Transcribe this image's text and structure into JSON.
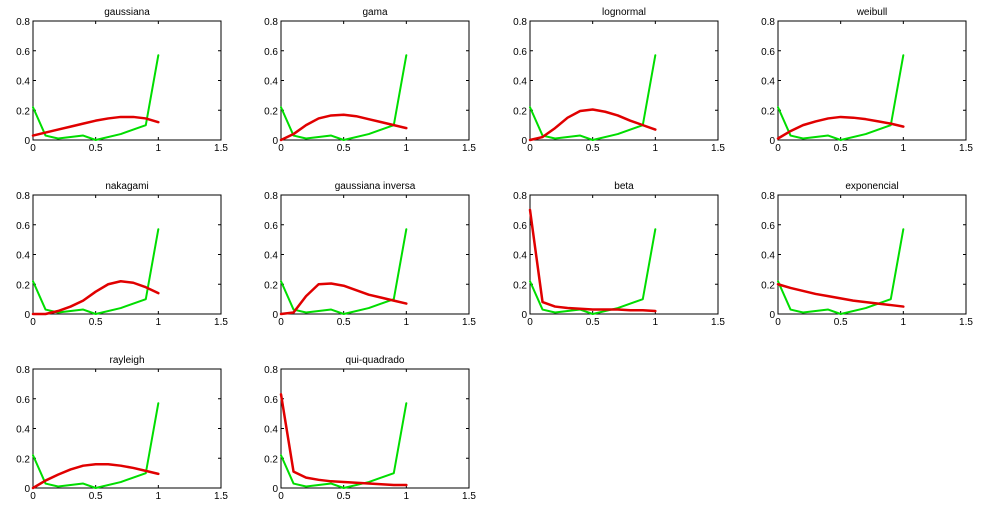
{
  "chart_data": [
    {
      "type": "line",
      "title": "gaussiana",
      "xlim": [
        0,
        1.5
      ],
      "ylim": [
        0,
        0.8
      ],
      "xticks": [
        "0",
        "0.5",
        "1",
        "1.5"
      ],
      "yticks": [
        "0",
        "0.2",
        "0.4",
        "0.6",
        "0.8"
      ],
      "series": [
        {
          "color": "#00dd00",
          "x": [
            0,
            0.1,
            0.2,
            0.4,
            0.5,
            0.7,
            0.9,
            1.0
          ],
          "y": [
            0.22,
            0.03,
            0.01,
            0.03,
            0.0,
            0.04,
            0.1,
            0.57
          ]
        },
        {
          "color": "#e00000",
          "x": [
            0,
            0.1,
            0.2,
            0.3,
            0.4,
            0.5,
            0.6,
            0.7,
            0.8,
            0.9,
            1.0
          ],
          "y": [
            0.03,
            0.05,
            0.07,
            0.09,
            0.11,
            0.13,
            0.145,
            0.155,
            0.155,
            0.145,
            0.12
          ]
        }
      ]
    },
    {
      "type": "line",
      "title": "gama",
      "xlim": [
        0,
        1.5
      ],
      "ylim": [
        0,
        0.8
      ],
      "xticks": [
        "0",
        "0.5",
        "1",
        "1.5"
      ],
      "yticks": [
        "0",
        "0.2",
        "0.4",
        "0.6",
        "0.8"
      ],
      "series": [
        {
          "color": "#00dd00",
          "x": [
            0,
            0.1,
            0.2,
            0.4,
            0.5,
            0.7,
            0.9,
            1.0
          ],
          "y": [
            0.22,
            0.03,
            0.01,
            0.03,
            0.0,
            0.04,
            0.1,
            0.57
          ]
        },
        {
          "color": "#e00000",
          "x": [
            0,
            0.1,
            0.2,
            0.3,
            0.4,
            0.5,
            0.6,
            0.7,
            0.8,
            0.9,
            1.0
          ],
          "y": [
            0.0,
            0.04,
            0.1,
            0.145,
            0.165,
            0.17,
            0.16,
            0.14,
            0.12,
            0.1,
            0.08
          ]
        }
      ]
    },
    {
      "type": "line",
      "title": "lognormal",
      "xlim": [
        0,
        1.5
      ],
      "ylim": [
        0,
        0.8
      ],
      "xticks": [
        "0",
        "0.5",
        "1",
        "1.5"
      ],
      "yticks": [
        "0",
        "0.2",
        "0.4",
        "0.6",
        "0.8"
      ],
      "series": [
        {
          "color": "#00dd00",
          "x": [
            0,
            0.1,
            0.2,
            0.4,
            0.5,
            0.7,
            0.9,
            1.0
          ],
          "y": [
            0.22,
            0.03,
            0.01,
            0.03,
            0.0,
            0.04,
            0.1,
            0.57
          ]
        },
        {
          "color": "#e00000",
          "x": [
            0,
            0.1,
            0.2,
            0.3,
            0.4,
            0.5,
            0.6,
            0.7,
            0.8,
            0.9,
            1.0
          ],
          "y": [
            0.0,
            0.02,
            0.08,
            0.15,
            0.195,
            0.205,
            0.19,
            0.165,
            0.13,
            0.1,
            0.07
          ]
        }
      ]
    },
    {
      "type": "line",
      "title": "weibull",
      "xlim": [
        0,
        1.5
      ],
      "ylim": [
        0,
        0.8
      ],
      "xticks": [
        "0",
        "0.5",
        "1",
        "1.5"
      ],
      "yticks": [
        "0",
        "0.2",
        "0.4",
        "0.6",
        "0.8"
      ],
      "series": [
        {
          "color": "#00dd00",
          "x": [
            0,
            0.1,
            0.2,
            0.4,
            0.5,
            0.7,
            0.9,
            1.0
          ],
          "y": [
            0.22,
            0.03,
            0.01,
            0.03,
            0.0,
            0.04,
            0.1,
            0.57
          ]
        },
        {
          "color": "#e00000",
          "x": [
            0,
            0.1,
            0.2,
            0.3,
            0.4,
            0.5,
            0.6,
            0.7,
            0.8,
            0.9,
            1.0
          ],
          "y": [
            0.01,
            0.06,
            0.1,
            0.125,
            0.145,
            0.155,
            0.15,
            0.14,
            0.125,
            0.11,
            0.09
          ]
        }
      ]
    },
    {
      "type": "line",
      "title": "nakagami",
      "xlim": [
        0,
        1.5
      ],
      "ylim": [
        0,
        0.8
      ],
      "xticks": [
        "0",
        "0.5",
        "1",
        "1.5"
      ],
      "yticks": [
        "0",
        "0.2",
        "0.4",
        "0.6",
        "0.8"
      ],
      "series": [
        {
          "color": "#00dd00",
          "x": [
            0,
            0.1,
            0.2,
            0.4,
            0.5,
            0.7,
            0.9,
            1.0
          ],
          "y": [
            0.22,
            0.03,
            0.01,
            0.03,
            0.0,
            0.04,
            0.1,
            0.57
          ]
        },
        {
          "color": "#e00000",
          "x": [
            0,
            0.1,
            0.2,
            0.3,
            0.4,
            0.5,
            0.6,
            0.7,
            0.8,
            0.9,
            1.0
          ],
          "y": [
            0.0,
            0.0,
            0.02,
            0.05,
            0.09,
            0.15,
            0.2,
            0.22,
            0.21,
            0.18,
            0.14
          ]
        }
      ]
    },
    {
      "type": "line",
      "title": "gaussiana inversa",
      "xlim": [
        0,
        1.5
      ],
      "ylim": [
        0,
        0.8
      ],
      "xticks": [
        "0",
        "0.5",
        "1",
        "1.5"
      ],
      "yticks": [
        "0",
        "0.2",
        "0.4",
        "0.6",
        "0.8"
      ],
      "series": [
        {
          "color": "#00dd00",
          "x": [
            0,
            0.1,
            0.2,
            0.4,
            0.5,
            0.7,
            0.9,
            1.0
          ],
          "y": [
            0.22,
            0.03,
            0.01,
            0.03,
            0.0,
            0.04,
            0.1,
            0.57
          ]
        },
        {
          "color": "#e00000",
          "x": [
            0,
            0.1,
            0.2,
            0.3,
            0.4,
            0.5,
            0.6,
            0.7,
            0.8,
            0.9,
            1.0
          ],
          "y": [
            0.0,
            0.01,
            0.12,
            0.2,
            0.205,
            0.19,
            0.16,
            0.13,
            0.11,
            0.09,
            0.07
          ]
        }
      ]
    },
    {
      "type": "line",
      "title": "beta",
      "xlim": [
        0,
        1.5
      ],
      "ylim": [
        0,
        0.8
      ],
      "xticks": [
        "0",
        "0.5",
        "1",
        "1.5"
      ],
      "yticks": [
        "0",
        "0.2",
        "0.4",
        "0.6",
        "0.8"
      ],
      "series": [
        {
          "color": "#00dd00",
          "x": [
            0,
            0.1,
            0.2,
            0.4,
            0.5,
            0.7,
            0.9,
            1.0
          ],
          "y": [
            0.22,
            0.03,
            0.01,
            0.03,
            0.0,
            0.04,
            0.1,
            0.57
          ]
        },
        {
          "color": "#e00000",
          "x": [
            0,
            0.1,
            0.2,
            0.3,
            0.4,
            0.5,
            0.6,
            0.7,
            0.8,
            0.9,
            1.0
          ],
          "y": [
            0.7,
            0.08,
            0.05,
            0.04,
            0.035,
            0.03,
            0.03,
            0.03,
            0.025,
            0.025,
            0.02
          ]
        }
      ]
    },
    {
      "type": "line",
      "title": "exponencial",
      "xlim": [
        0,
        1.5
      ],
      "ylim": [
        0,
        0.8
      ],
      "xticks": [
        "0",
        "0.5",
        "1",
        "1.5"
      ],
      "yticks": [
        "0",
        "0.2",
        "0.4",
        "0.6",
        "0.8"
      ],
      "series": [
        {
          "color": "#00dd00",
          "x": [
            0,
            0.1,
            0.2,
            0.4,
            0.5,
            0.7,
            0.9,
            1.0
          ],
          "y": [
            0.22,
            0.03,
            0.01,
            0.03,
            0.0,
            0.04,
            0.1,
            0.57
          ]
        },
        {
          "color": "#e00000",
          "x": [
            0,
            0.1,
            0.2,
            0.3,
            0.4,
            0.5,
            0.6,
            0.7,
            0.8,
            0.9,
            1.0
          ],
          "y": [
            0.2,
            0.175,
            0.155,
            0.135,
            0.12,
            0.105,
            0.09,
            0.08,
            0.07,
            0.06,
            0.05
          ]
        }
      ]
    },
    {
      "type": "line",
      "title": "rayleigh",
      "xlim": [
        0,
        1.5
      ],
      "ylim": [
        0,
        0.8
      ],
      "xticks": [
        "0",
        "0.5",
        "1",
        "1.5"
      ],
      "yticks": [
        "0",
        "0.2",
        "0.4",
        "0.6",
        "0.8"
      ],
      "series": [
        {
          "color": "#00dd00",
          "x": [
            0,
            0.1,
            0.2,
            0.4,
            0.5,
            0.7,
            0.9,
            1.0
          ],
          "y": [
            0.22,
            0.03,
            0.01,
            0.03,
            0.0,
            0.04,
            0.1,
            0.57
          ]
        },
        {
          "color": "#e00000",
          "x": [
            0,
            0.1,
            0.2,
            0.3,
            0.4,
            0.5,
            0.6,
            0.7,
            0.8,
            0.9,
            1.0
          ],
          "y": [
            0.0,
            0.05,
            0.09,
            0.125,
            0.15,
            0.16,
            0.16,
            0.15,
            0.135,
            0.115,
            0.095
          ]
        }
      ]
    },
    {
      "type": "line",
      "title": "qui-quadrado",
      "xlim": [
        0,
        1.5
      ],
      "ylim": [
        0,
        0.8
      ],
      "xticks": [
        "0",
        "0.5",
        "1",
        "1.5"
      ],
      "yticks": [
        "0",
        "0.2",
        "0.4",
        "0.6",
        "0.8"
      ],
      "series": [
        {
          "color": "#00dd00",
          "x": [
            0,
            0.1,
            0.2,
            0.4,
            0.5,
            0.7,
            0.9,
            1.0
          ],
          "y": [
            0.22,
            0.03,
            0.01,
            0.03,
            0.0,
            0.04,
            0.1,
            0.57
          ]
        },
        {
          "color": "#e00000",
          "x": [
            0,
            0.1,
            0.2,
            0.3,
            0.4,
            0.5,
            0.6,
            0.7,
            0.8,
            0.9,
            1.0
          ],
          "y": [
            0.63,
            0.11,
            0.07,
            0.055,
            0.045,
            0.04,
            0.035,
            0.03,
            0.025,
            0.02,
            0.02
          ]
        }
      ]
    }
  ]
}
